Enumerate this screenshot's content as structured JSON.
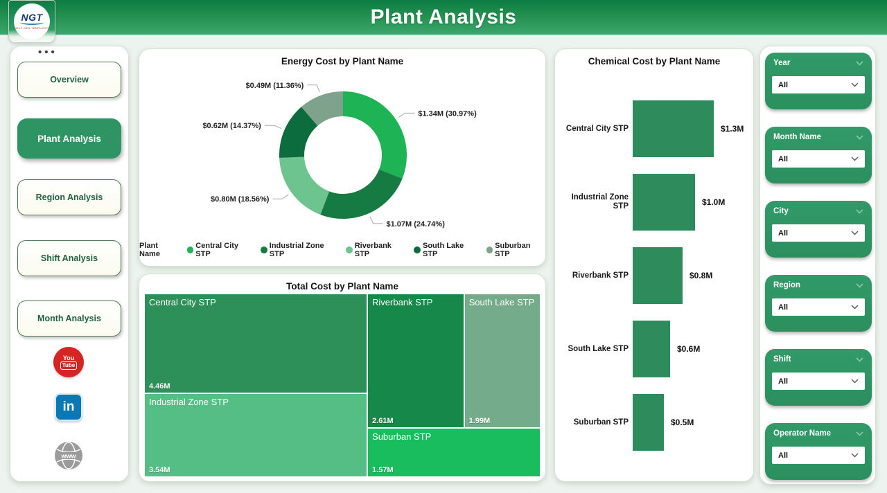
{
  "header": {
    "title": "Plant Analysis",
    "logo_text": "NGT",
    "logo_subtext": "NEXT GEN TEMPLATES"
  },
  "sidebar": {
    "items": [
      {
        "label": "Overview",
        "active": false
      },
      {
        "label": "Plant Analysis",
        "active": true
      },
      {
        "label": "Region Analysis",
        "active": false
      },
      {
        "label": "Shift Analysis",
        "active": false
      },
      {
        "label": "Month Analysis",
        "active": false
      }
    ],
    "social": [
      "YouTube",
      "LinkedIn",
      "Website"
    ],
    "youtube_top": "You",
    "youtube_bottom": "Tube",
    "linkedin_text": "in",
    "www_text": "www"
  },
  "filters": [
    {
      "label": "Year",
      "value": "All"
    },
    {
      "label": "Month Name",
      "value": "All"
    },
    {
      "label": "City",
      "value": "All"
    },
    {
      "label": "Region",
      "value": "All"
    },
    {
      "label": "Shift",
      "value": "All"
    },
    {
      "label": "Operator Name",
      "value": "All"
    }
  ],
  "colors": {
    "theme_green": "#2e9463",
    "header_gradient_top": "#0d7c43",
    "header_gradient_bottom": "#3ba76c",
    "background": "#edf3ee"
  },
  "chart_data": [
    {
      "type": "pie",
      "subtype": "donut",
      "title": "Energy Cost by Plant Name",
      "legend_title": "Plant Name",
      "legend_position": "bottom",
      "categories": [
        "Central City STP",
        "Industrial Zone STP",
        "Riverbank STP",
        "South Lake STP",
        "Suburban STP"
      ],
      "values": [
        1.34,
        1.07,
        0.8,
        0.62,
        0.49
      ],
      "percents": [
        30.97,
        24.74,
        18.56,
        14.37,
        11.36
      ],
      "labels": [
        "$1.34M (30.97%)",
        "$1.07M (24.74%)",
        "$0.80M (18.56%)",
        "$0.62M (14.37%)",
        "$0.49M (11.36%)"
      ],
      "colors": [
        "#1eb455",
        "#157b43",
        "#6ec48e",
        "#0d6c3d",
        "#7fa28c"
      ],
      "units": "$M"
    },
    {
      "type": "treemap",
      "title": "Total Cost by Plant Name",
      "categories": [
        "Central City STP",
        "Industrial Zone STP",
        "Riverbank STP",
        "South Lake STP",
        "Suburban STP"
      ],
      "values": [
        4.46,
        3.54,
        2.61,
        1.99,
        1.57
      ],
      "labels": [
        "4.46M",
        "3.54M",
        "2.61M",
        "1.99M",
        "1.57M"
      ],
      "colors": [
        "#2e9059",
        "#55be85",
        "#16894a",
        "#73ab8b",
        "#1abd5d"
      ],
      "units": "M"
    },
    {
      "type": "bar",
      "orientation": "horizontal",
      "title": "Chemical Cost by Plant Name",
      "categories": [
        "Central City STP",
        "Industrial Zone STP",
        "Riverbank STP",
        "South Lake STP",
        "Suburban STP"
      ],
      "values": [
        1.3,
        1.0,
        0.8,
        0.6,
        0.5
      ],
      "labels": [
        "$1.3M",
        "$1.0M",
        "$0.8M",
        "$0.6M",
        "$0.5M"
      ],
      "bar_color": "#2e8c5c",
      "xlim": [
        0,
        1.5
      ],
      "grid": false,
      "units": "$M"
    }
  ]
}
